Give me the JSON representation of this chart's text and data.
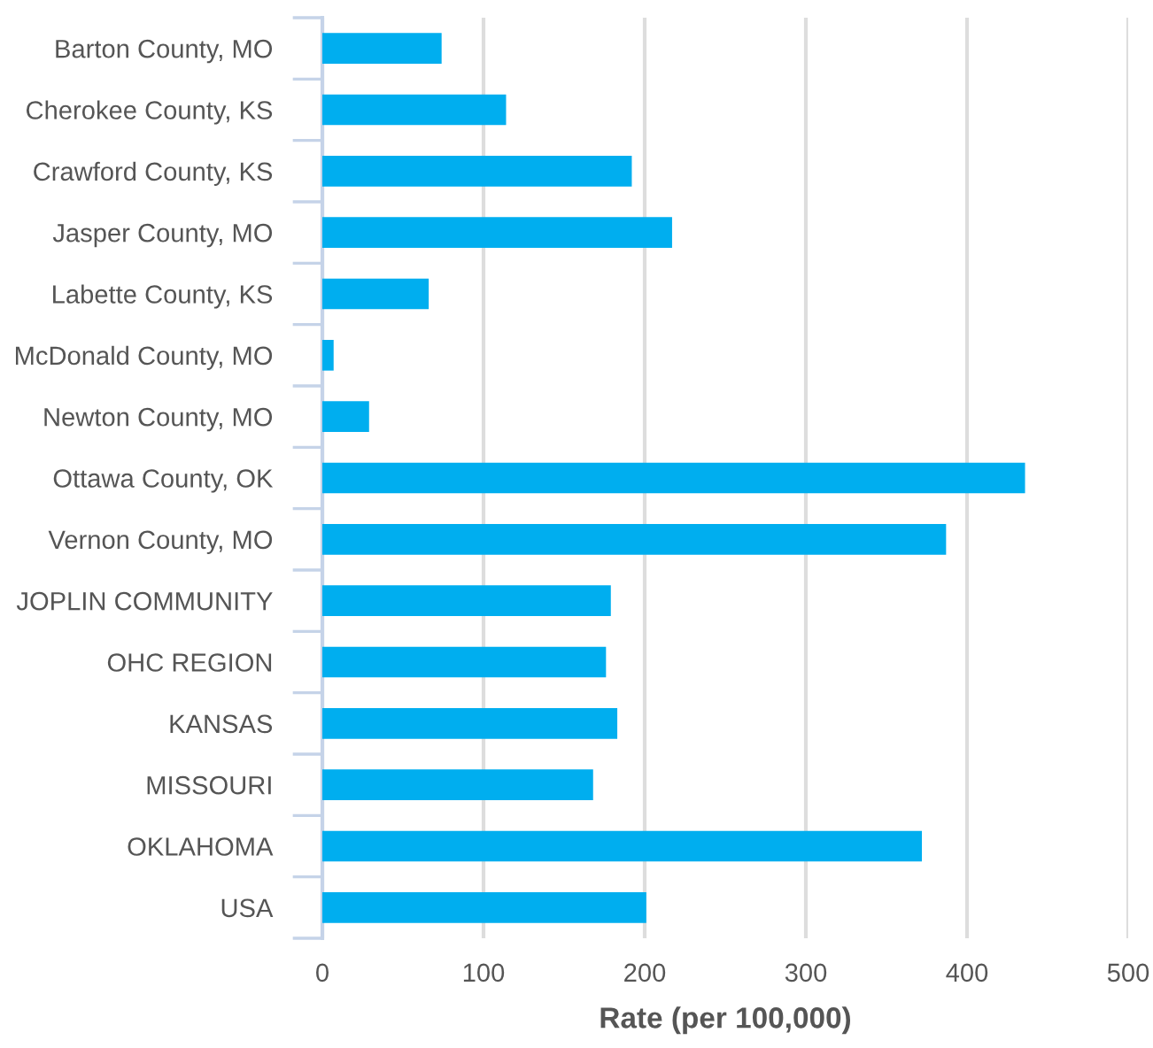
{
  "chart_data": {
    "type": "bar",
    "orientation": "horizontal",
    "xlabel": "Rate (per 100,000)",
    "categories": [
      "Barton County, MO",
      "Cherokee County, KS",
      "Crawford County, KS",
      "Jasper County, MO",
      "Labette County, KS",
      "McDonald County, MO",
      "Newton County, MO",
      "Ottawa County, OK",
      "Vernon County, MO",
      "JOPLIN COMMUNITY",
      "OHC REGION",
      "KANSAS",
      "MISSOURI",
      "OKLAHOMA",
      "USA"
    ],
    "values": [
      74,
      114,
      192,
      217,
      66,
      7,
      29,
      436,
      387,
      179,
      176,
      183,
      168,
      372,
      201
    ],
    "color": "#00aeef",
    "xlim": [
      0,
      500
    ],
    "xticks": [
      0,
      100,
      200,
      300,
      400,
      500
    ],
    "grid": "x"
  }
}
